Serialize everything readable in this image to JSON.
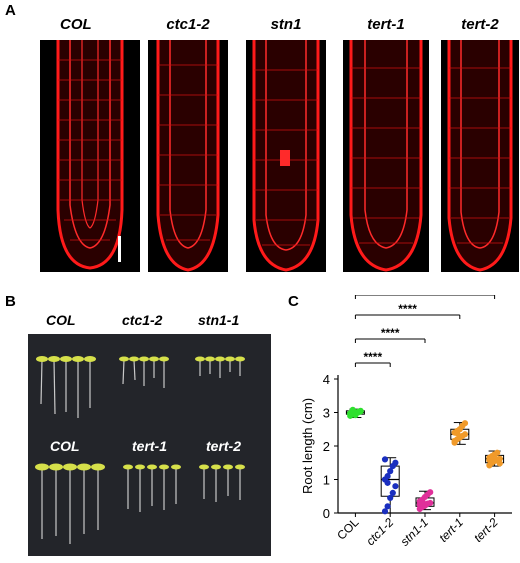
{
  "panels": {
    "a": "A",
    "b": "B",
    "c": "C"
  },
  "panel_a": {
    "labels": [
      "COL",
      "ctc1-2",
      "stn1",
      "tert-1",
      "tert-2"
    ]
  },
  "panel_b": {
    "top_row": [
      "COL",
      "ctc1-2",
      "stn1-1"
    ],
    "bottom_row": [
      "COL",
      "tert-1",
      "tert-2"
    ]
  },
  "colors": {
    "col": "#2fe02f",
    "ctc1_2": "#1a2fbf",
    "stn1_1": "#e0309a",
    "tert": "#f09a2a",
    "root_red": "#ff1a1a"
  },
  "chart_data": {
    "type": "box",
    "ylabel": "Root length (cm)",
    "ylim": [
      0,
      4
    ],
    "yticks": [
      "0",
      "1",
      "2",
      "3",
      "4"
    ],
    "categories": [
      "COL",
      "ctc1-2",
      "stn1-1",
      "tert-1",
      "tert-2"
    ],
    "series": [
      {
        "category": "COL",
        "min": 2.85,
        "q1": 2.95,
        "median": 3.0,
        "q3": 3.05,
        "max": 3.1,
        "points": [
          2.9,
          2.95,
          3.0,
          3.02,
          3.05,
          2.98,
          3.08,
          2.92,
          3.0,
          3.03,
          2.97,
          3.06
        ]
      },
      {
        "category": "ctc1-2",
        "min": 0.0,
        "q1": 0.5,
        "median": 1.0,
        "q3": 1.4,
        "max": 1.65,
        "points": [
          0.05,
          0.2,
          0.45,
          0.6,
          0.8,
          1.0,
          1.1,
          1.25,
          1.4,
          1.5,
          1.6,
          0.9
        ]
      },
      {
        "category": "stn1-1",
        "min": 0.1,
        "q1": 0.2,
        "median": 0.3,
        "q3": 0.45,
        "max": 0.65,
        "points": [
          0.12,
          0.18,
          0.22,
          0.28,
          0.3,
          0.35,
          0.4,
          0.48,
          0.55,
          0.62,
          0.25,
          0.33
        ]
      },
      {
        "category": "tert-1",
        "min": 2.05,
        "q1": 2.2,
        "median": 2.35,
        "q3": 2.5,
        "max": 2.7,
        "points": [
          2.1,
          2.2,
          2.25,
          2.3,
          2.35,
          2.4,
          2.45,
          2.5,
          2.6,
          2.68,
          2.15,
          2.38
        ]
      },
      {
        "category": "tert-2",
        "min": 1.4,
        "q1": 1.5,
        "median": 1.62,
        "q3": 1.72,
        "max": 1.85,
        "points": [
          1.42,
          1.5,
          1.55,
          1.6,
          1.62,
          1.65,
          1.7,
          1.75,
          1.8,
          1.48,
          1.58,
          1.68
        ]
      }
    ],
    "significance": [
      {
        "from": "COL",
        "to": "ctc1-2",
        "label": "****"
      },
      {
        "from": "COL",
        "to": "stn1-1",
        "label": "****"
      },
      {
        "from": "COL",
        "to": "tert-1",
        "label": "****"
      },
      {
        "from": "COL",
        "to": "tert-2",
        "label": "****"
      }
    ]
  }
}
